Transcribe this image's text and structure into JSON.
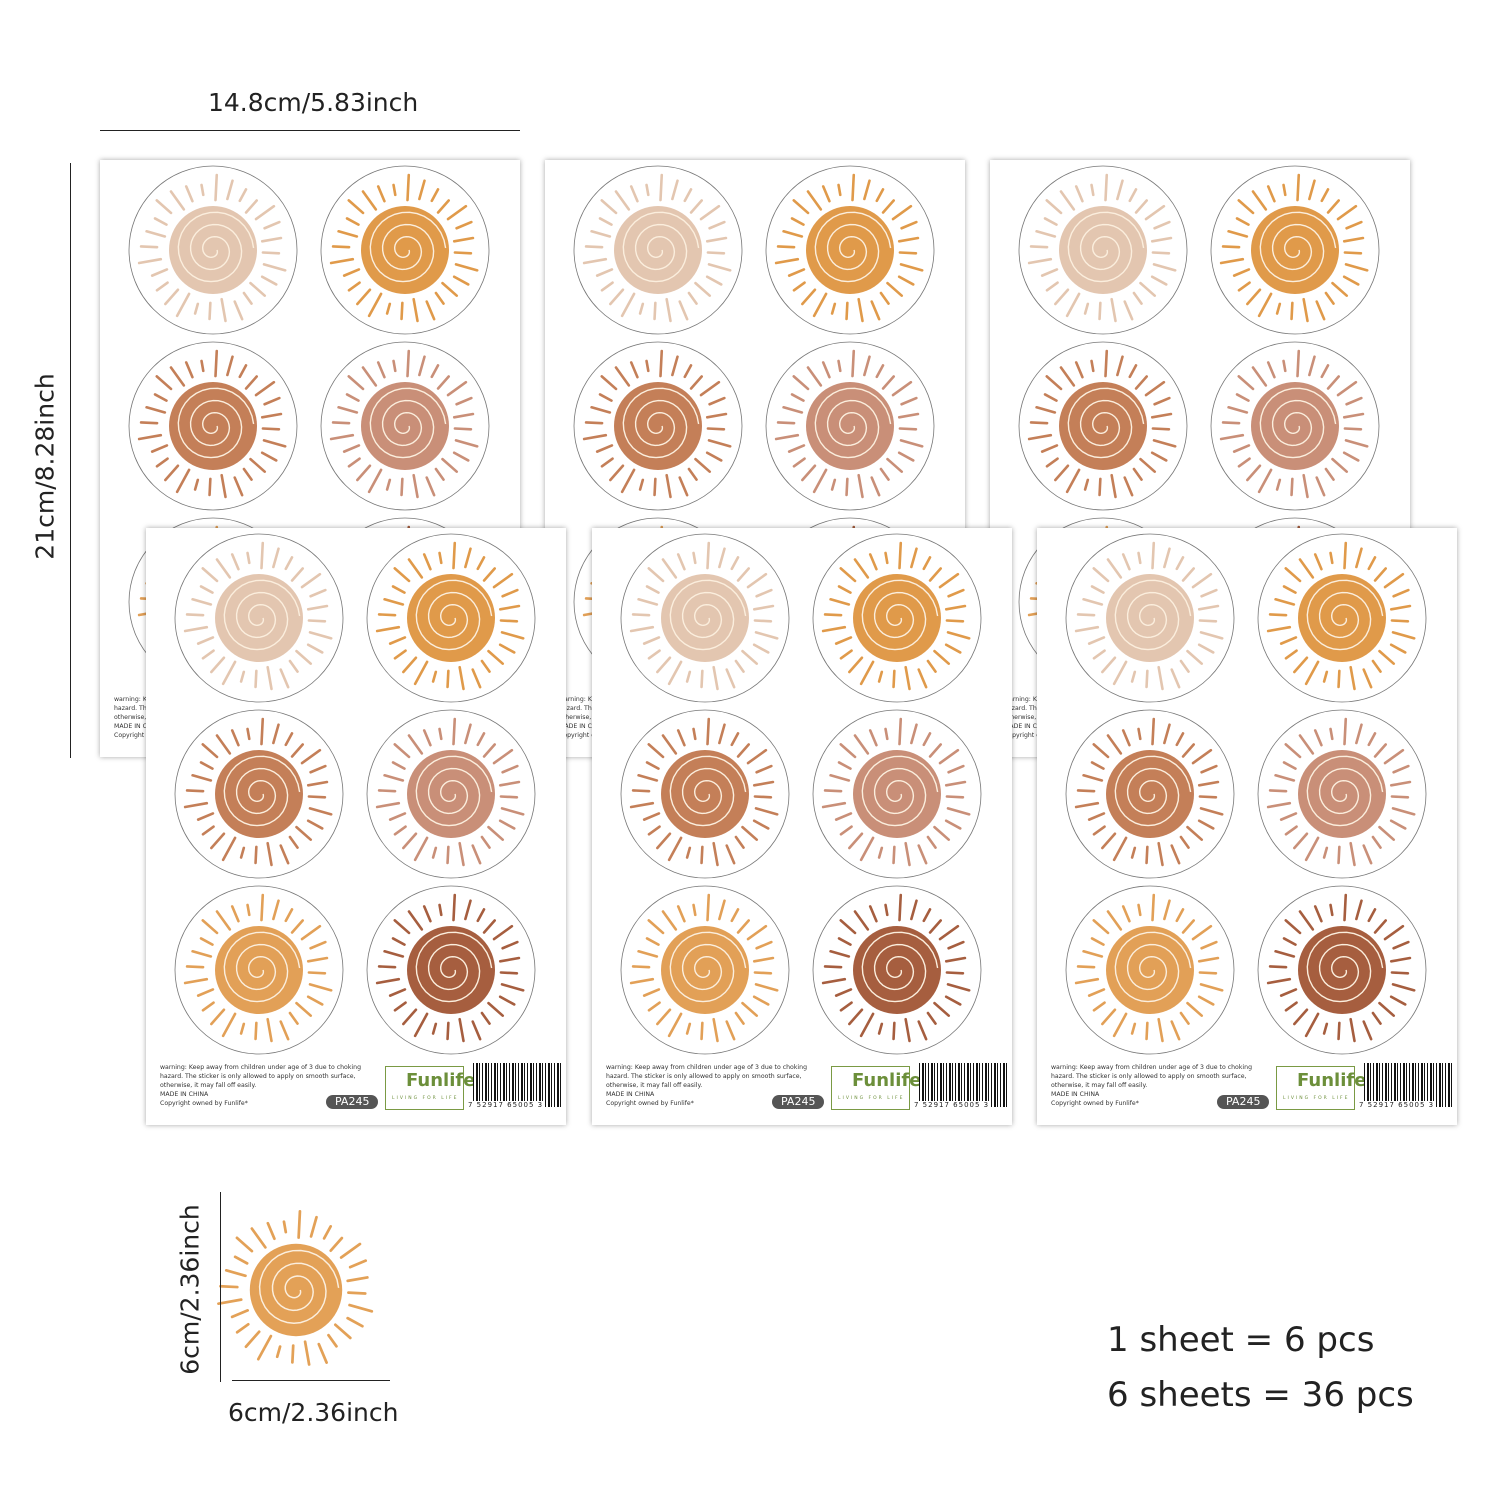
{
  "dimensions": {
    "sheet_width": "14.8cm/5.83inch",
    "sheet_height": "21cm/8.28inch",
    "sticker_width": "6cm/2.36inch",
    "sticker_height": "6cm/2.36inch"
  },
  "sticker_colors": [
    "#e3c6b0",
    "#e09a4a",
    "#c47f58",
    "#c98f78",
    "#e2a057",
    "#a65e3f"
  ],
  "single_sticker_color": "#e3a157",
  "sheet_footer": {
    "warning": "warning: Keep away from children under age of 3 due to choking hazard. The sticker is only allowed to apply on smooth surface, otherwise, it may fall off easily.",
    "made_in": "MADE IN CHINA",
    "copyright": "Copyright owned by Funlife*",
    "code": "PA245",
    "brand": "Funlife",
    "brand_tagline": "LIVING FOR LIFE",
    "barcode_number": "7 52917 65005 3"
  },
  "counts": {
    "per_sheet": "1 sheet = 6 pcs",
    "total": "6 sheets = 36 pcs"
  }
}
